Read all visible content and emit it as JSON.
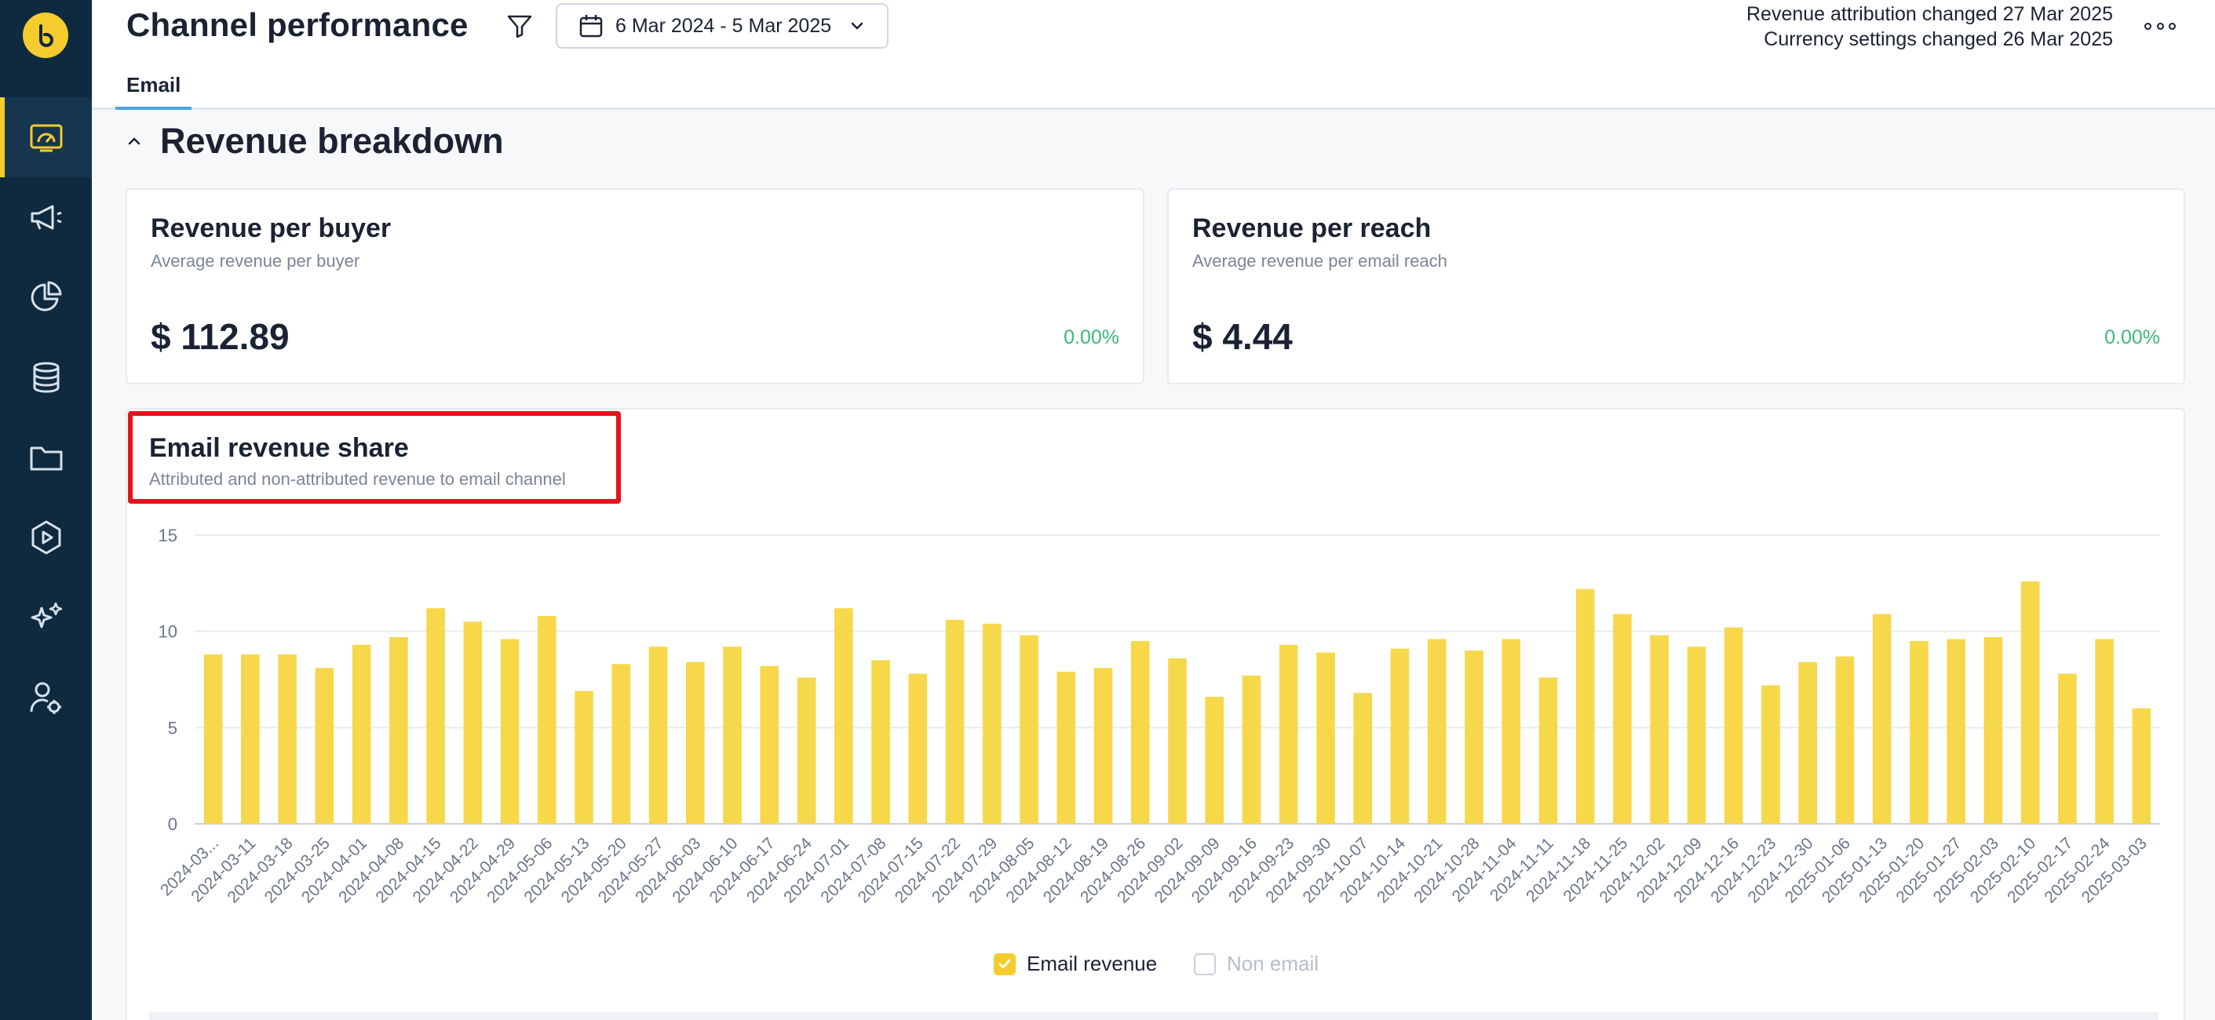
{
  "header": {
    "title": "Channel performance",
    "date_range": "6 Mar 2024 - 5 Mar 2025",
    "notices": [
      "Revenue attribution changed 27 Mar 2025",
      "Currency settings changed 26 Mar 2025"
    ],
    "tabs": [
      {
        "label": "Email",
        "active": true
      }
    ]
  },
  "sidebar": {
    "items": [
      {
        "icon": "dashboard-icon",
        "active": true
      },
      {
        "icon": "megaphone-icon",
        "active": false
      },
      {
        "icon": "pie-chart-icon",
        "active": false
      },
      {
        "icon": "database-icon",
        "active": false
      },
      {
        "icon": "folder-icon",
        "active": false
      },
      {
        "icon": "play-hexagon-icon",
        "active": false
      },
      {
        "icon": "sparkles-icon",
        "active": false
      },
      {
        "icon": "user-settings-icon",
        "active": false
      }
    ]
  },
  "section": {
    "title": "Revenue breakdown"
  },
  "cards": [
    {
      "title": "Revenue per buyer",
      "subtitle": "Average revenue per buyer",
      "value": "$ 112.89",
      "change": "0.00%"
    },
    {
      "title": "Revenue per reach",
      "subtitle": "Average revenue per email reach",
      "value": "$ 4.44",
      "change": "0.00%"
    }
  ],
  "chart": {
    "title": "Email revenue share",
    "subtitle": "Attributed and non-attributed revenue to email channel",
    "legend": [
      {
        "label": "Email revenue",
        "checked": true
      },
      {
        "label": "Non email",
        "checked": false
      }
    ]
  },
  "colors": {
    "accent": "#f5cc2e",
    "sidebar": "#0f2a3f",
    "positive": "#3cb878",
    "highlight": "#e3141b"
  },
  "chart_data": {
    "type": "bar",
    "title": "Email revenue share",
    "xlabel": "",
    "ylabel": "",
    "ylim": [
      0,
      15
    ],
    "yticks": [
      0,
      5,
      10,
      15
    ],
    "grid": true,
    "legend_position": "bottom",
    "categories": [
      "2024-03...",
      "2024-03-11",
      "2024-03-18",
      "2024-03-25",
      "2024-04-01",
      "2024-04-08",
      "2024-04-15",
      "2024-04-22",
      "2024-04-29",
      "2024-05-06",
      "2024-05-13",
      "2024-05-20",
      "2024-05-27",
      "2024-06-03",
      "2024-06-10",
      "2024-06-17",
      "2024-06-24",
      "2024-07-01",
      "2024-07-08",
      "2024-07-15",
      "2024-07-22",
      "2024-07-29",
      "2024-08-05",
      "2024-08-12",
      "2024-08-19",
      "2024-08-26",
      "2024-09-02",
      "2024-09-09",
      "2024-09-16",
      "2024-09-23",
      "2024-09-30",
      "2024-10-07",
      "2024-10-14",
      "2024-10-21",
      "2024-10-28",
      "2024-11-04",
      "2024-11-11",
      "2024-11-18",
      "2024-11-25",
      "2024-12-02",
      "2024-12-09",
      "2024-12-16",
      "2024-12-23",
      "2024-12-30",
      "2025-01-06",
      "2025-01-13",
      "2025-01-20",
      "2025-01-27",
      "2025-02-03",
      "2025-02-10",
      "2025-02-17",
      "2025-02-24",
      "2025-03-03"
    ],
    "series": [
      {
        "name": "Email revenue",
        "color": "#f7d84a",
        "values": [
          8.8,
          8.8,
          8.8,
          8.1,
          9.3,
          9.7,
          11.2,
          10.5,
          9.6,
          10.8,
          6.9,
          8.3,
          9.2,
          8.4,
          9.2,
          8.2,
          7.6,
          11.2,
          8.5,
          7.8,
          10.6,
          10.4,
          9.8,
          7.9,
          8.1,
          9.5,
          8.6,
          6.6,
          7.7,
          9.3,
          8.9,
          6.8,
          9.1,
          9.6,
          9.0,
          9.6,
          7.6,
          12.2,
          10.9,
          9.8,
          9.2,
          10.2,
          7.2,
          8.4,
          8.7,
          10.9,
          9.5,
          9.6,
          9.7,
          12.6,
          7.8,
          9.6,
          6.0
        ]
      }
    ]
  }
}
